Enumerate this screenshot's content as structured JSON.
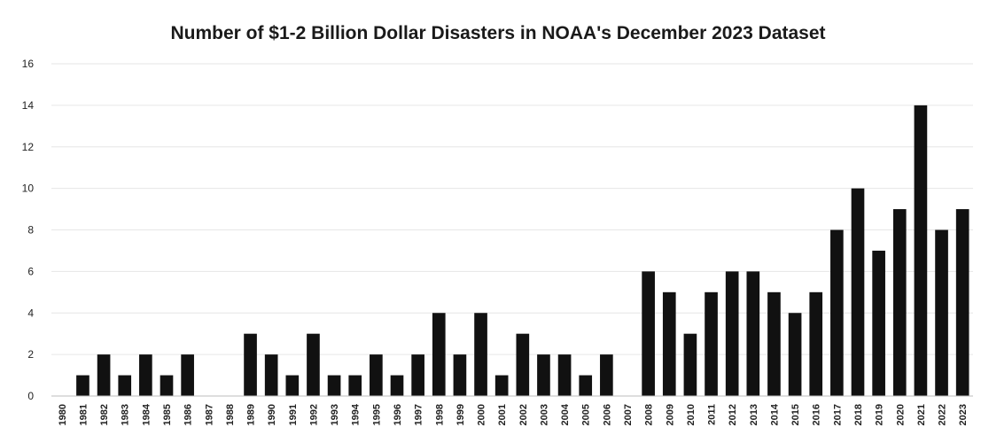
{
  "chart_data": {
    "type": "bar",
    "title": "Number of $1-2 Billion Dollar Disasters in NOAA's December 2023 Dataset",
    "xlabel": "",
    "ylabel": "",
    "ylim": [
      0,
      16
    ],
    "yticks": [
      0,
      2,
      4,
      6,
      8,
      10,
      12,
      14,
      16
    ],
    "grid": true,
    "legend": "none",
    "bar_color": "#111111",
    "categories": [
      "1980",
      "1981",
      "1982",
      "1983",
      "1984",
      "1985",
      "1986",
      "1987",
      "1988",
      "1989",
      "1990",
      "1991",
      "1992",
      "1993",
      "1994",
      "1995",
      "1996",
      "1997",
      "1998",
      "1999",
      "2000",
      "2001",
      "2002",
      "2003",
      "2004",
      "2005",
      "2006",
      "2007",
      "2008",
      "2009",
      "2010",
      "2011",
      "2012",
      "2013",
      "2014",
      "2015",
      "2016",
      "2017",
      "2018",
      "2019",
      "2020",
      "2021",
      "2022",
      "2023"
    ],
    "values": [
      0,
      1,
      2,
      1,
      2,
      1,
      2,
      0,
      0,
      3,
      2,
      1,
      3,
      1,
      1,
      2,
      1,
      2,
      4,
      2,
      4,
      1,
      3,
      2,
      2,
      1,
      2,
      0,
      6,
      5,
      3,
      5,
      6,
      6,
      5,
      4,
      5,
      8,
      10,
      7,
      9,
      14,
      8,
      9
    ]
  }
}
